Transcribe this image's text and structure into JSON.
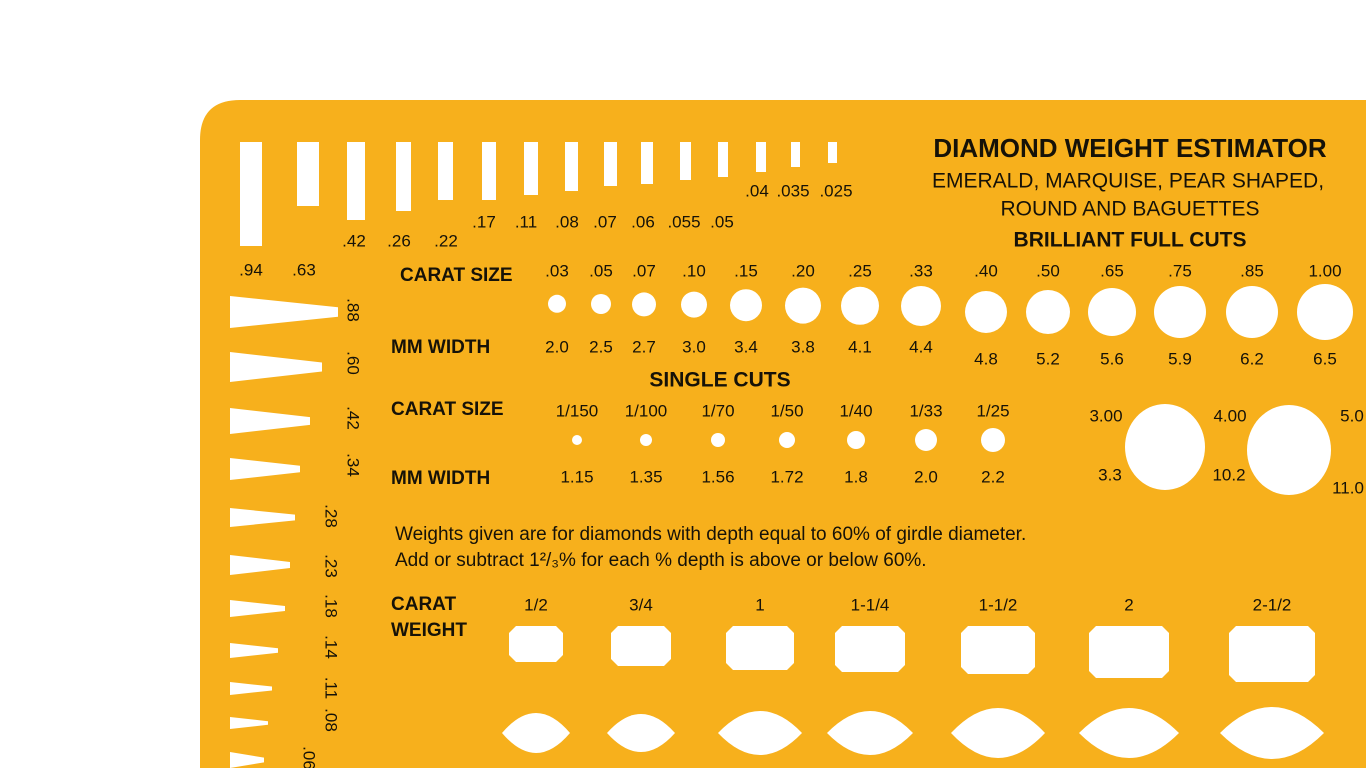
{
  "title": "DIAMOND WEIGHT ESTIMATOR",
  "subtitle": [
    "EMERALD, MARQUISE, PEAR SHAPED,",
    "ROUND AND BAGUETTES"
  ],
  "baguettes": {
    "top": [
      ".94",
      ".63",
      ".42",
      ".26",
      ".22",
      ".17",
      ".11",
      ".08",
      ".07",
      ".06",
      ".055",
      ".05",
      ".04",
      ".035",
      ".025"
    ],
    "side": [
      ".88",
      ".60",
      ".42",
      ".34",
      ".28",
      ".23",
      ".18",
      ".14",
      ".11",
      ".08",
      ".06"
    ]
  },
  "brilliant": {
    "heading": "BRILLIANT FULL CUTS",
    "carat_label": "CARAT SIZE",
    "mm_label": "MM WIDTH",
    "carats": [
      ".03",
      ".05",
      ".07",
      ".10",
      ".15",
      ".20",
      ".25",
      ".33",
      ".40",
      ".50",
      ".65",
      ".75",
      ".85",
      "1.00"
    ],
    "mm": [
      "2.0",
      "2.5",
      "2.7",
      "3.0",
      "3.4",
      "3.8",
      "4.1",
      "4.4",
      "4.8",
      "5.2",
      "5.6",
      "5.9",
      "6.2",
      "6.5"
    ]
  },
  "single": {
    "heading": "SINGLE CUTS",
    "carat_label": "CARAT SIZE",
    "mm_label": "MM WIDTH",
    "carats": [
      "1/150",
      "1/100",
      "1/70",
      "1/50",
      "1/40",
      "1/33",
      "1/25"
    ],
    "mm": [
      "1.15",
      "1.35",
      "1.56",
      "1.72",
      "1.8",
      "2.0",
      "2.2"
    ]
  },
  "large_rounds": {
    "carats": [
      "3.00",
      "4.00",
      "5.0"
    ],
    "mm": [
      "3.3",
      "10.2",
      "11.0"
    ]
  },
  "notes": [
    "Weights given are for diamonds with depth equal to 60% of girdle diameter.",
    "Add or subtract 1²/₃% for each % depth is above or below 60%."
  ],
  "carat_weight": {
    "label": [
      "CARAT",
      "WEIGHT"
    ],
    "values": [
      "1/2",
      "3/4",
      "1",
      "1-1/4",
      "1-1/2",
      "2",
      "2-1/2"
    ]
  }
}
